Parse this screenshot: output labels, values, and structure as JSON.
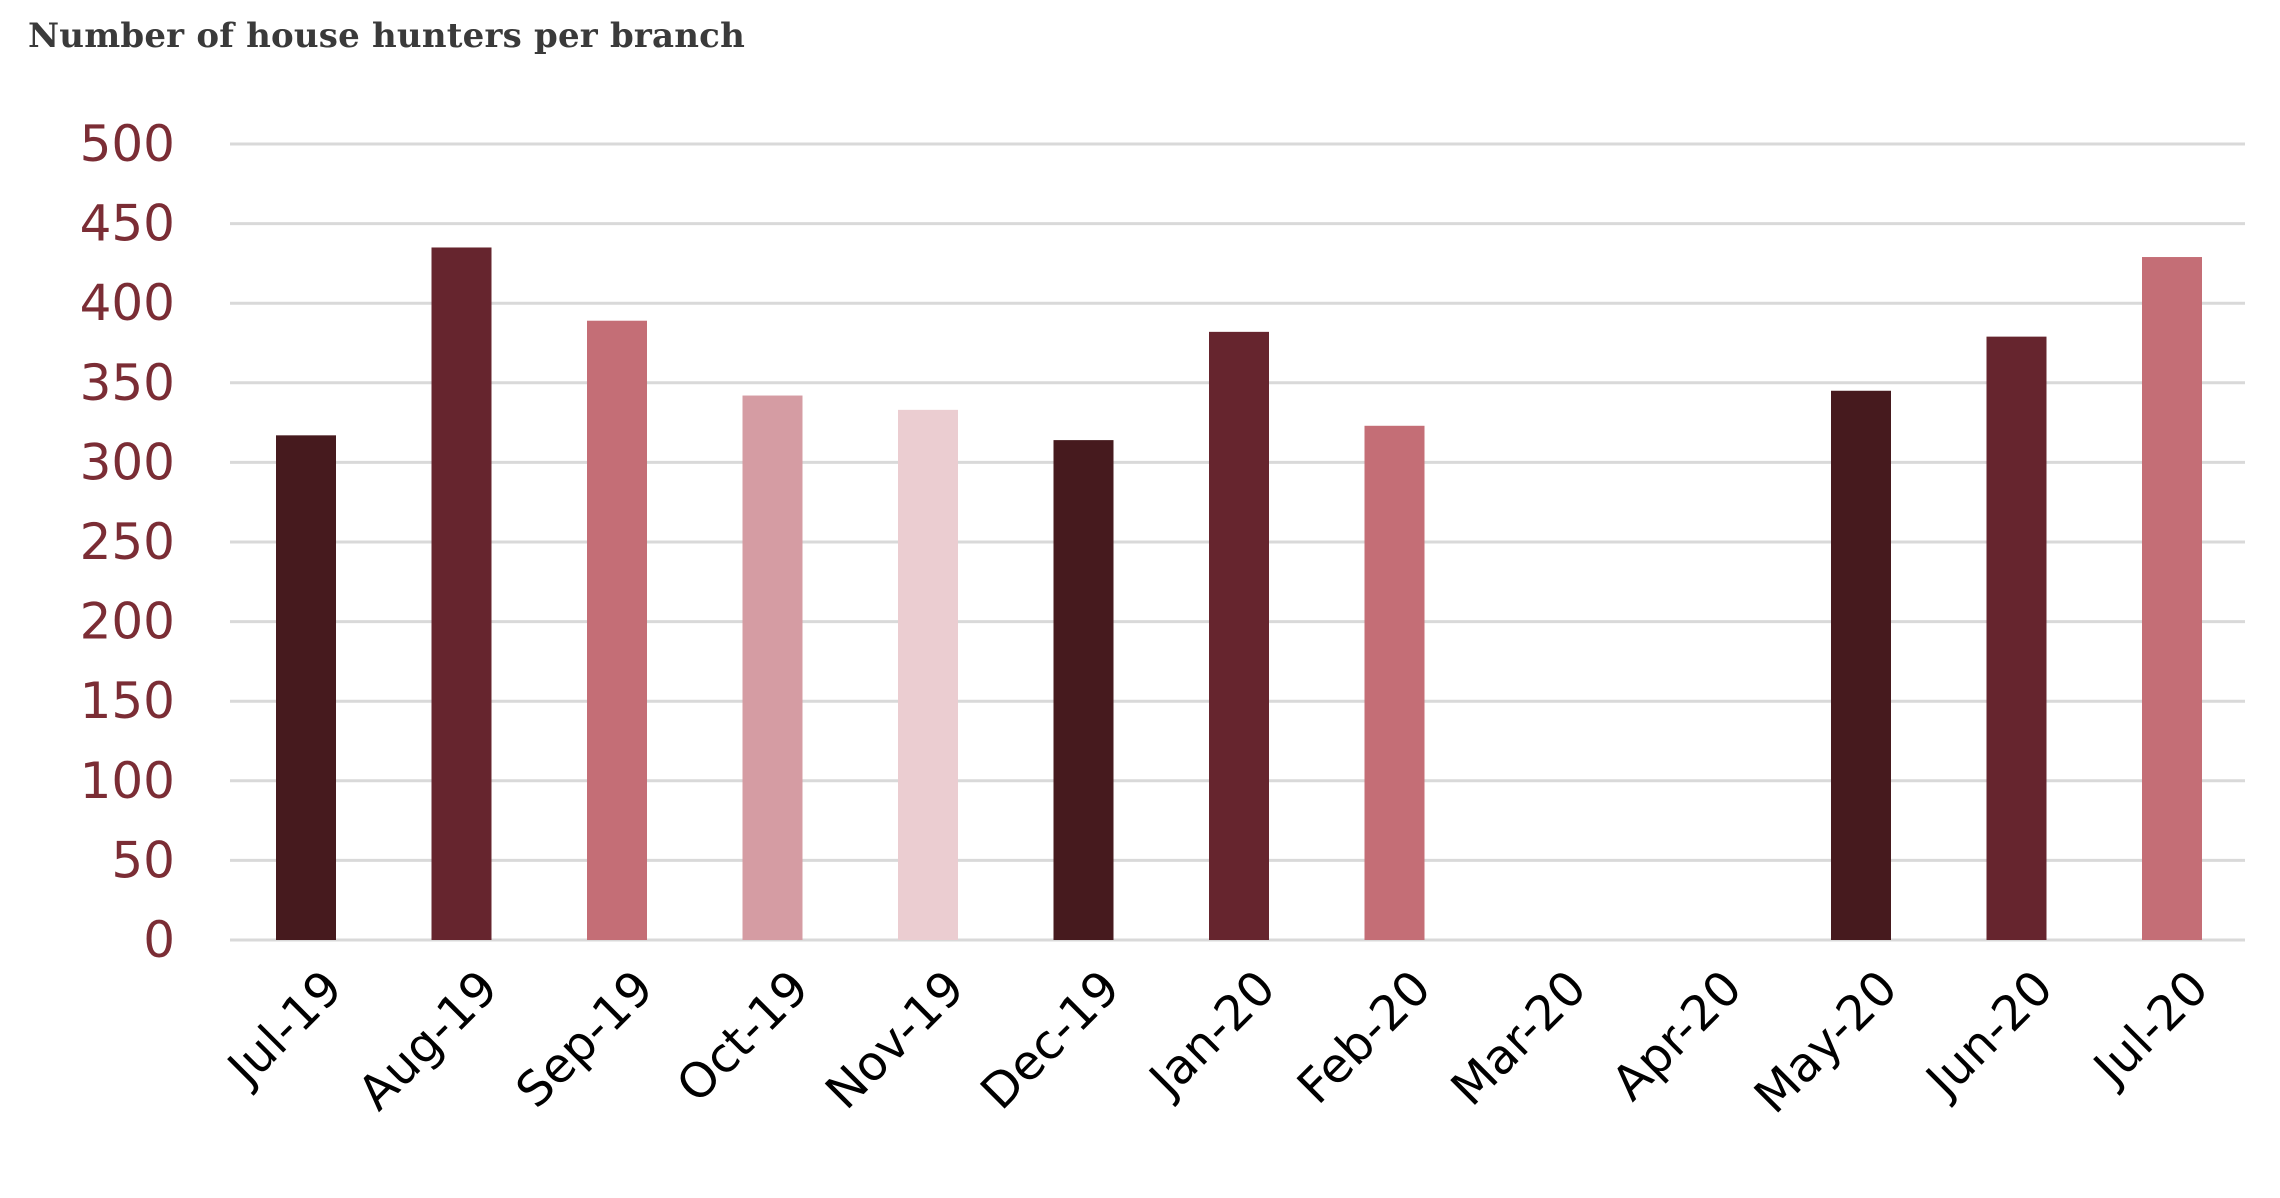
{
  "title": "Number of house hunters per branch",
  "colors": {
    "gridline": "#d9d9d9",
    "ytick_text": "#7b2d35",
    "xtick_text": "#000000",
    "title_text": "#3a3a3a"
  },
  "chart_data": {
    "type": "bar",
    "title": "Number of house hunters per branch",
    "xlabel": "",
    "ylabel": "",
    "ylim": [
      0,
      500
    ],
    "yticks": [
      0,
      50,
      100,
      150,
      200,
      250,
      300,
      350,
      400,
      450,
      500
    ],
    "grid": true,
    "legend": "none",
    "categories": [
      "Jul-19",
      "Aug-19",
      "Sep-19",
      "Oct-19",
      "Nov-19",
      "Dec-19",
      "Jan-20",
      "Feb-20",
      "Mar-20",
      "Apr-20",
      "May-20",
      "Jun-20",
      "Jul-20"
    ],
    "values": [
      317,
      435,
      389,
      342,
      333,
      314,
      382,
      323,
      null,
      null,
      345,
      379,
      429
    ],
    "bar_colors": [
      "#461a1e",
      "#66252e",
      "#c46e76",
      "#d59ca3",
      "#ebcdd1",
      "#461a1e",
      "#66252e",
      "#c46e76",
      "#d59ca3",
      "#ebcdd1",
      "#461a1e",
      "#66252e",
      "#c46e76"
    ]
  }
}
